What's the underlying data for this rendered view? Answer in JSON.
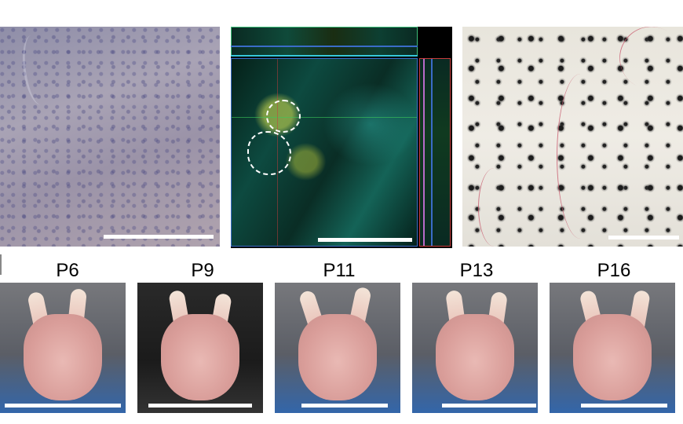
{
  "panels": {
    "skin": {
      "description_icon": "skin-photo"
    },
    "confocal": {
      "description_icon": "confocal-image"
    },
    "stain": {
      "description_icon": "stained-skin-photo"
    }
  },
  "paws": [
    {
      "label": "P6"
    },
    {
      "label": "P9"
    },
    {
      "label": "P11"
    },
    {
      "label": "P13"
    },
    {
      "label": "P16"
    }
  ],
  "colors": {
    "scalebar": "#ffffff",
    "confocal_top_border": "#3ec07a",
    "confocal_main_border": "#3a6cc8",
    "confocal_side_border": "#c83a3a",
    "roi_outline": "#ffffff"
  }
}
